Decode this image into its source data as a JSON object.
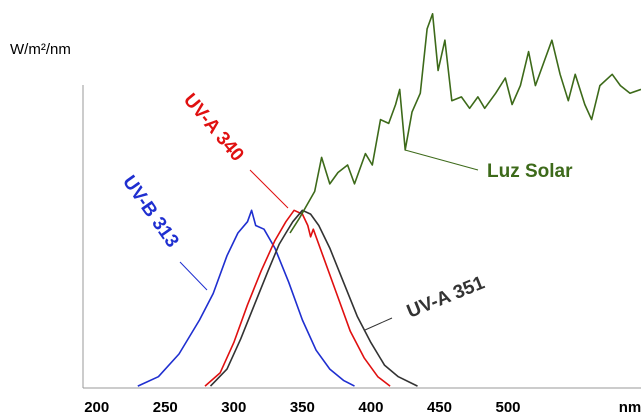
{
  "chart_data": {
    "type": "line",
    "y_label": "W/m²/nm",
    "x_label": "nm",
    "xlim": [
      190,
      597
    ],
    "ylim": [
      0,
      100
    ],
    "xticks": [
      200,
      250,
      300,
      350,
      400,
      450,
      500
    ],
    "grid": false,
    "series": [
      {
        "name": "UV-B 313",
        "color": "#1f2fd0",
        "x": [
          230,
          245,
          260,
          275,
          285,
          295,
          303,
          310,
          313,
          316,
          322,
          330,
          340,
          350,
          360,
          370,
          380,
          388
        ],
        "values": [
          0.5,
          3,
          9,
          18,
          25,
          35,
          41,
          44,
          47,
          43,
          42,
          37,
          28,
          18,
          10,
          5,
          2,
          0.5
        ]
      },
      {
        "name": "UV-A 340",
        "color": "#e01010",
        "x": [
          279,
          290,
          300,
          310,
          320,
          330,
          338,
          344,
          350,
          354,
          356,
          358,
          365,
          375,
          385,
          395,
          405,
          414
        ],
        "values": [
          0.5,
          4,
          12,
          22,
          31,
          39,
          44,
          47,
          46,
          43,
          40,
          42,
          35,
          25,
          15,
          8,
          3,
          0.5
        ]
      },
      {
        "name": "UV-A 351",
        "color": "#333333",
        "x": [
          283,
          295,
          305,
          315,
          325,
          333,
          338,
          343,
          350,
          356,
          362,
          370,
          380,
          390,
          400,
          410,
          420,
          434
        ],
        "values": [
          0.5,
          5,
          13,
          22,
          31,
          38,
          41,
          44,
          47,
          46,
          43,
          37,
          28,
          19,
          12,
          6,
          3,
          0.5
        ]
      },
      {
        "name": "Luz Solar",
        "color": "#3d6a1a",
        "x": [
          341,
          348,
          359,
          364,
          370,
          376,
          383,
          388,
          396,
          401,
          407,
          413,
          418,
          421,
          425,
          430,
          436,
          441,
          445,
          449,
          454,
          459,
          466,
          472,
          478,
          483,
          491,
          498,
          503,
          509,
          515,
          520,
          527,
          532,
          538,
          544,
          549,
          556,
          561,
          567,
          576,
          582,
          589,
          597
        ],
        "values": [
          41,
          45,
          52,
          61,
          54,
          57,
          59,
          54,
          62,
          59,
          71,
          70,
          75,
          79,
          63,
          73,
          78,
          95,
          99,
          84,
          92,
          76,
          77,
          74,
          77,
          74,
          78,
          82,
          75,
          80,
          89,
          80,
          87,
          92,
          83,
          76,
          83,
          75,
          71,
          80,
          83,
          80,
          78,
          79
        ]
      }
    ]
  }
}
